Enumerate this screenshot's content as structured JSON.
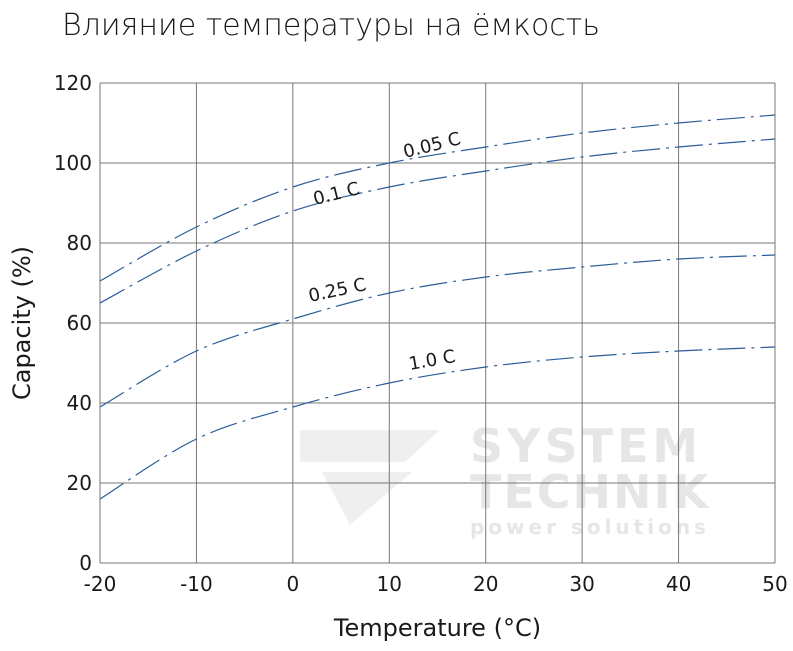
{
  "chart_data": {
    "type": "line",
    "title": "Влияние температуры на ёмкость",
    "xlabel": "Temperature (°C)",
    "ylabel": "Capacity (%)",
    "xlim": [
      -20,
      50
    ],
    "ylim": [
      0,
      120
    ],
    "xticks": [
      -20,
      -10,
      0,
      10,
      20,
      30,
      40,
      50
    ],
    "yticks": [
      0,
      20,
      40,
      60,
      80,
      100,
      120
    ],
    "grid": true,
    "line_style": "dash-dot",
    "line_color": "#2a5d9a",
    "x": [
      -20,
      -10,
      0,
      10,
      20,
      30,
      40,
      50
    ],
    "series": [
      {
        "name": "0.05 C",
        "values": [
          70.5,
          84,
          94,
          100,
          104,
          107.5,
          110,
          112
        ]
      },
      {
        "name": "0.1 C",
        "values": [
          65,
          78,
          88,
          94,
          98,
          101.5,
          104,
          106
        ]
      },
      {
        "name": "0.25 C",
        "values": [
          39,
          53,
          61,
          67.5,
          71.5,
          74,
          76,
          77
        ]
      },
      {
        "name": "1.0 C",
        "values": [
          16,
          31,
          39,
          45,
          49,
          51.5,
          53,
          54
        ]
      }
    ]
  },
  "watermark": {
    "line1": "SYSTEM",
    "line2": "TECHNIK",
    "line3": "power solutions"
  }
}
